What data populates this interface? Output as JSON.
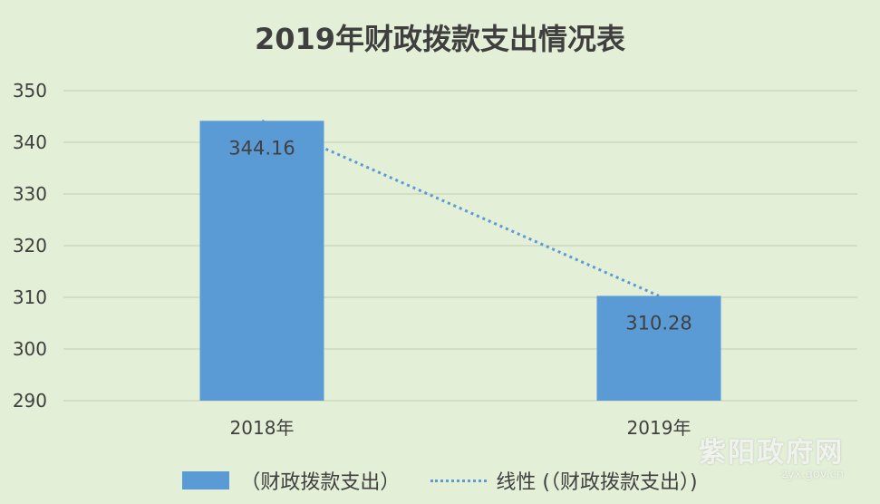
{
  "chart_data": {
    "type": "bar",
    "title": "2019年财政拨款支出情况表",
    "categories": [
      "2018年",
      "2019年"
    ],
    "series": [
      {
        "name": "（财政拨款支出）",
        "values": [
          344.16,
          310.28
        ],
        "color": "#5b9bd5"
      }
    ],
    "data_labels": [
      "344.16",
      "310.28"
    ],
    "trendline": {
      "name": "线性 (（财政拨款支出）)",
      "type": "linear",
      "color": "#5b9bd5"
    },
    "ylim": [
      290,
      350
    ],
    "yticks": [
      290,
      300,
      310,
      320,
      330,
      340,
      350
    ],
    "grid": true,
    "legend": "bottom"
  },
  "legend": {
    "bar_label": "（财政拨款支出）",
    "trend_label": "线性 (（财政拨款支出）)"
  },
  "watermark": {
    "name": "紫阳政府网",
    "url": "zyx.gov.cn"
  }
}
